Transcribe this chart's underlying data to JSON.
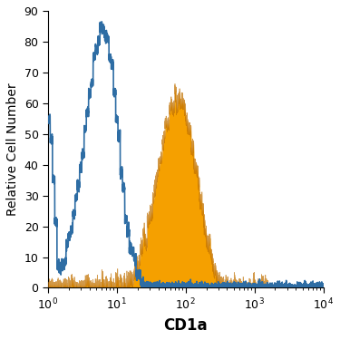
{
  "title": "",
  "xlabel": "CD1a",
  "ylabel": "Relative Cell Number",
  "xlim_log": [
    1,
    10000
  ],
  "ylim": [
    0,
    90
  ],
  "yticks": [
    0,
    10,
    20,
    30,
    40,
    50,
    60,
    70,
    80,
    90
  ],
  "blue_color": "#5b9bd5",
  "blue_line_color": "#2e6da4",
  "orange_color": "#f5a000",
  "orange_line_color": "#c07000",
  "background_color": "#ffffff",
  "xlabel_fontsize": 12,
  "ylabel_fontsize": 10,
  "tick_fontsize": 9
}
